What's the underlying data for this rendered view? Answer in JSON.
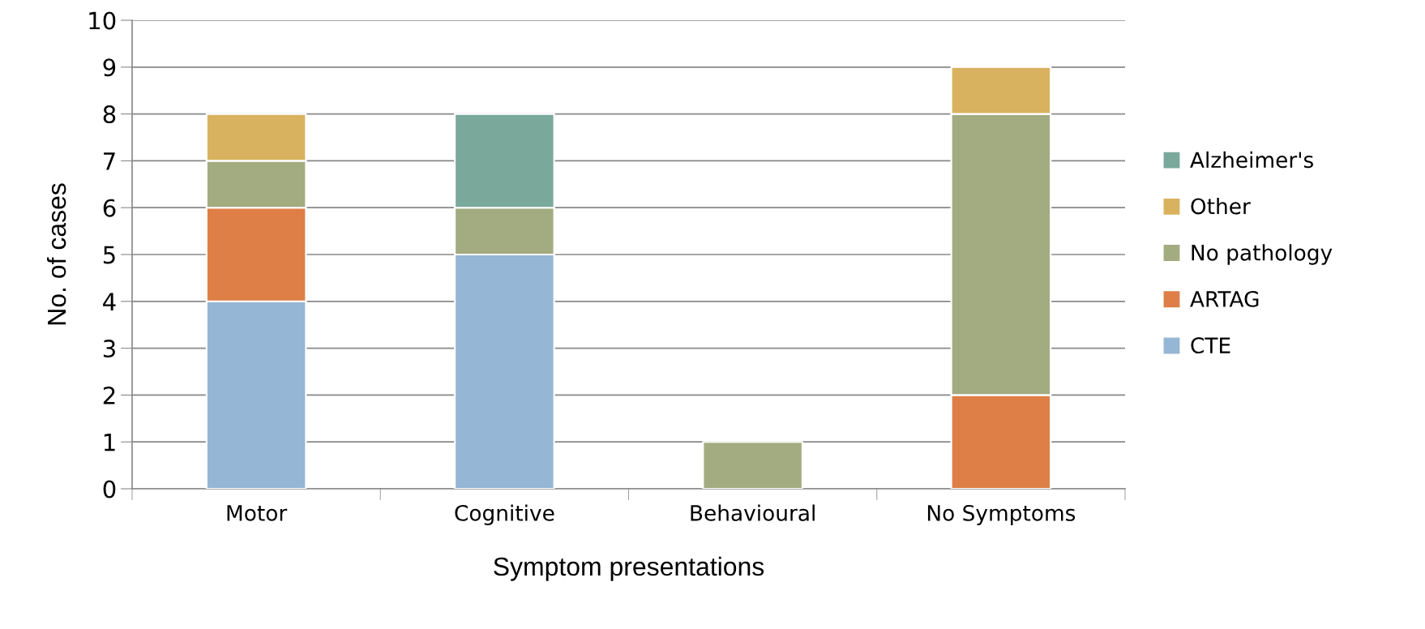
{
  "chart_data": {
    "type": "bar",
    "stacked": true,
    "xlabel": "Symptom presentations",
    "ylabel": "No. of cases",
    "categories": [
      "Motor",
      "Cognitive",
      "Behavioural",
      "No Symptoms"
    ],
    "series": [
      {
        "name": "CTE",
        "color": "#95b6d4",
        "values": [
          4,
          5,
          0,
          0
        ]
      },
      {
        "name": "ARTAG",
        "color": "#dd7f47",
        "values": [
          2,
          0,
          0,
          2
        ]
      },
      {
        "name": "No pathology",
        "color": "#a3ab80",
        "values": [
          1,
          1,
          1,
          6
        ]
      },
      {
        "name": "Other",
        "color": "#d9b25f",
        "values": [
          1,
          0,
          0,
          1
        ]
      },
      {
        "name": "Alzheimer's",
        "color": "#7aa89b",
        "values": [
          0,
          2,
          0,
          0
        ]
      }
    ],
    "ylim": [
      0,
      10
    ],
    "yticks": [
      0,
      1,
      2,
      3,
      4,
      5,
      6,
      7,
      8,
      9,
      10
    ],
    "grid": "y",
    "legend": "right"
  }
}
